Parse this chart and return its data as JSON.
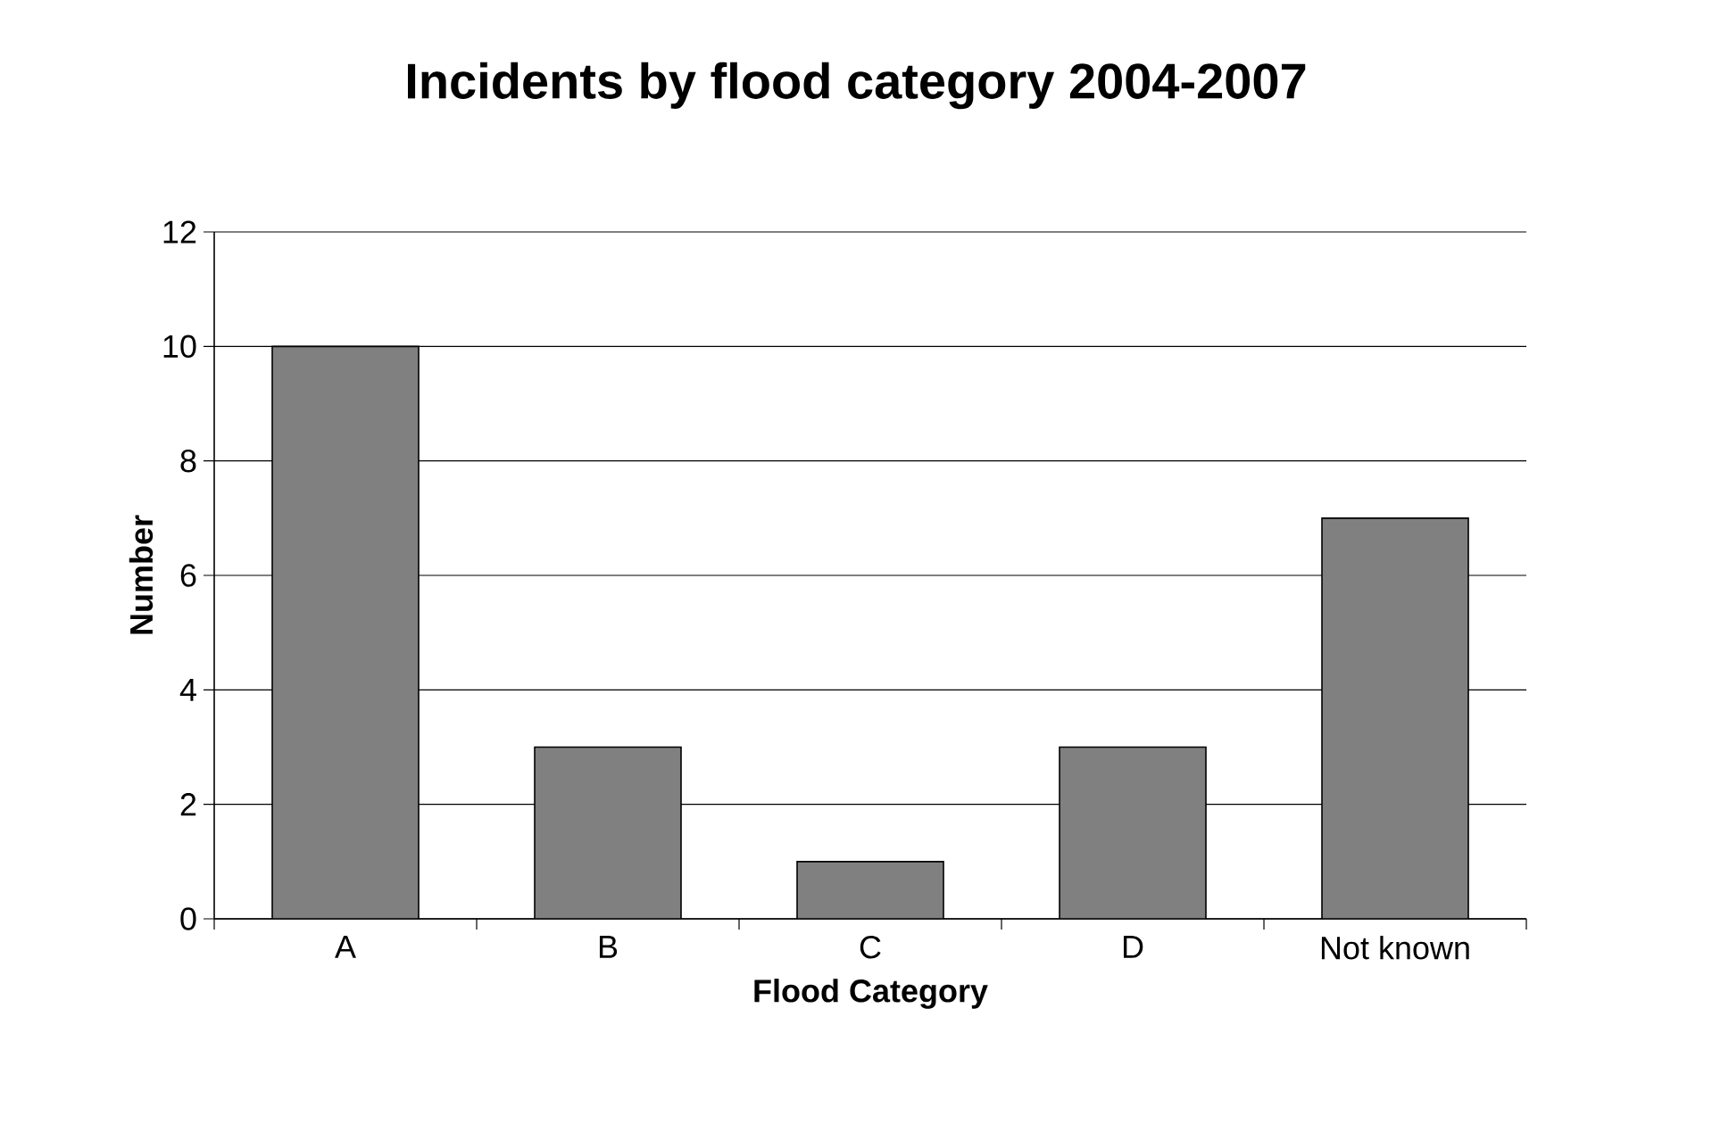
{
  "chart_data": {
    "type": "bar",
    "title": "Incidents by flood category 2004-2007",
    "xlabel": "Flood Category",
    "ylabel": "Number",
    "categories": [
      "A",
      "B",
      "C",
      "D",
      "Not known"
    ],
    "values": [
      10,
      3,
      1,
      3,
      7
    ],
    "color": "#808080",
    "ylim": [
      0,
      12
    ],
    "yticks": [
      0,
      2,
      4,
      6,
      8,
      10,
      12
    ],
    "grid": "y"
  }
}
